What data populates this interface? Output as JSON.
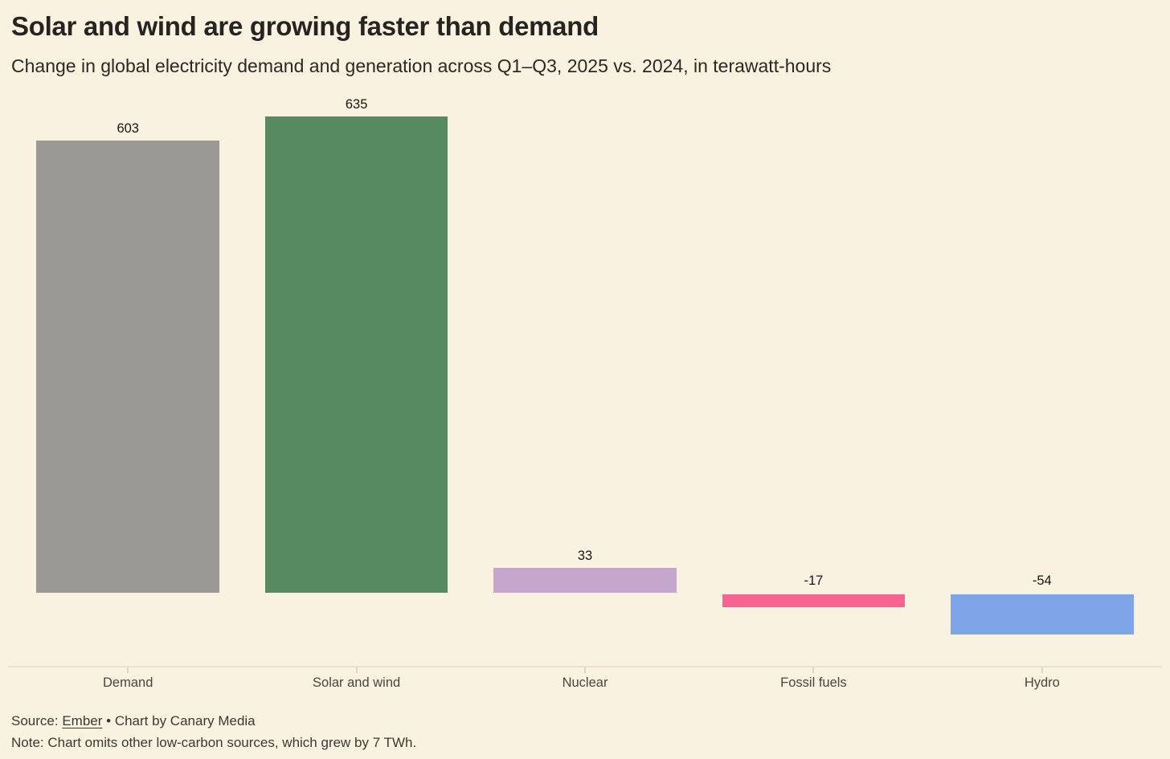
{
  "header": {
    "title": "Solar and wind are growing faster than demand",
    "subtitle": "Change in global electricity demand and generation across Q1–Q3, 2025 vs. 2024, in terawatt-hours"
  },
  "chart_data": {
    "type": "bar",
    "title": "Solar and wind are growing faster than demand",
    "subtitle": "Change in global electricity demand and generation across Q1–Q3, 2025 vs. 2024, in terawatt-hours",
    "unit": "TWh",
    "categories": [
      "Demand",
      "Solar and wind",
      "Nuclear",
      "Fossil fuels",
      "Hydro"
    ],
    "values": [
      603,
      635,
      33,
      -17,
      -54
    ],
    "value_labels": [
      "603",
      "635",
      "33",
      "-17",
      "-54"
    ],
    "colors": [
      "#9b9993",
      "#578a5f",
      "#c7a6ce",
      "#f86391",
      "#7fa4e8"
    ],
    "xlabel": "",
    "ylabel": "",
    "ylim": [
      -60,
      650
    ],
    "grid": false,
    "legend": false,
    "background_color": "#f9f2e0"
  },
  "footer": {
    "source_prefix": "Source:",
    "source_link_label": "Ember",
    "source_separator": "•",
    "credit": "Chart by Canary Media",
    "note": "Note: Chart omits other low-carbon sources, which grew by 7 TWh."
  }
}
